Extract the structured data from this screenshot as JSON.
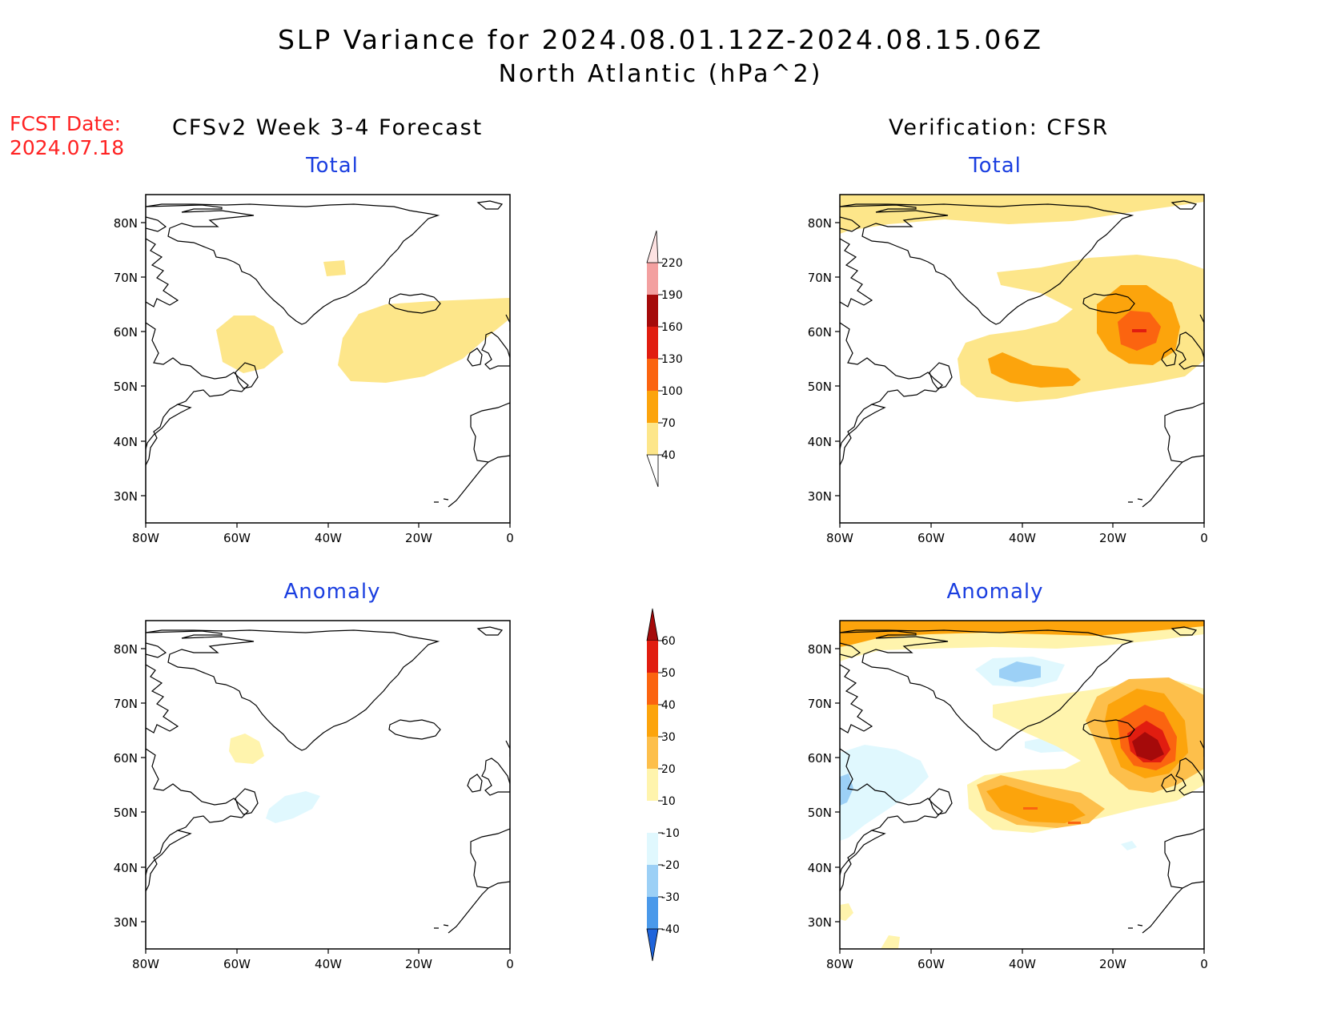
{
  "title_line1": "SLP Variance for 2024.08.01.12Z-2024.08.15.06Z",
  "title_line2": "North Atlantic (hPa^2)",
  "fcst_label": "FCST Date:",
  "fcst_date": "2024.07.18",
  "left_column_title": "CFSv2 Week 3-4 Forecast",
  "right_column_title": "Verification: CFSR",
  "panel_titles": {
    "total_left": "Total",
    "total_right": "Total",
    "anomaly_left": "Anomaly",
    "anomaly_right": "Anomaly"
  },
  "lat_ticks": [
    "80N",
    "70N",
    "60N",
    "50N",
    "40N",
    "30N"
  ],
  "lon_ticks": [
    "80W",
    "60W",
    "40W",
    "20W",
    "0"
  ],
  "total_colorbar": {
    "levels": [
      "40",
      "70",
      "100",
      "130",
      "160",
      "190",
      "220"
    ],
    "colors": [
      "#fde68a",
      "#fca40c",
      "#fb6410",
      "#e11d10",
      "#a50a0a",
      "#f3a0a0",
      "#fde2e2"
    ]
  },
  "anomaly_colorbar": {
    "levels": [
      "60",
      "50",
      "40",
      "30",
      "20",
      "10",
      "-10",
      "-20",
      "-30",
      "-40"
    ],
    "colors": [
      "#a50a0a",
      "#e11d10",
      "#fb6410",
      "#fca40c",
      "#fdbf4b",
      "#fff4ad",
      "#ffffff",
      "#e0f8fe",
      "#9cd0f6",
      "#4a99ea",
      "#1f64db"
    ]
  }
}
